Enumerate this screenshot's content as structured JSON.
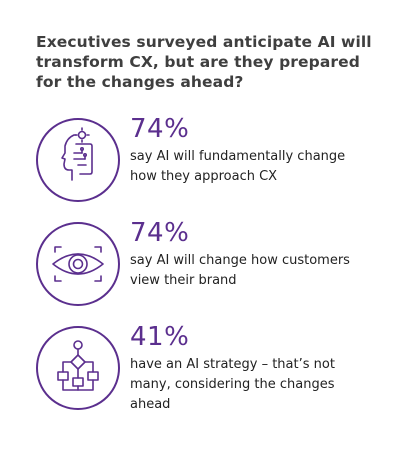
{
  "headline": "Executives surveyed anticipate AI will transform CX, but are they prepared for the changes ahead?",
  "accent_color": "#5b2f8e",
  "stats": [
    {
      "icon": "head-profile-icon",
      "percent": "74%",
      "description": "say AI will fundamentally change how they approach CX"
    },
    {
      "icon": "eye-focus-icon",
      "percent": "74%",
      "description": "say AI will change how customers view their brand"
    },
    {
      "icon": "flowchart-icon",
      "percent": "41%",
      "description": "have an AI strategy – that’s not many, considering the changes ahead"
    }
  ]
}
